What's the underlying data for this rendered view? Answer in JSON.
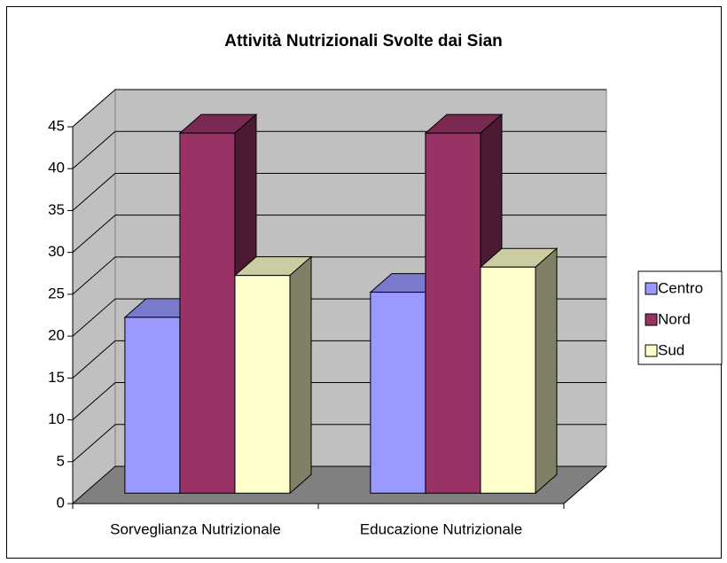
{
  "chart_data": {
    "type": "bar3d",
    "title": "Attività Nutrizionali Svolte dai Sian",
    "categories": [
      "Sorveglianza Nutrizionale",
      "Educazione Nutrizionale"
    ],
    "series": [
      {
        "name": "Centro",
        "color": "#9999ff",
        "values": [
          21,
          24
        ]
      },
      {
        "name": "Nord",
        "color": "#993366",
        "values": [
          43,
          43
        ]
      },
      {
        "name": "Sud",
        "color": "#ffffcc",
        "values": [
          26,
          27
        ]
      }
    ],
    "ylim": [
      0,
      45
    ],
    "yticks": [
      0,
      5,
      10,
      15,
      20,
      25,
      30,
      35,
      40,
      45
    ],
    "grid": true,
    "legend": "right"
  }
}
